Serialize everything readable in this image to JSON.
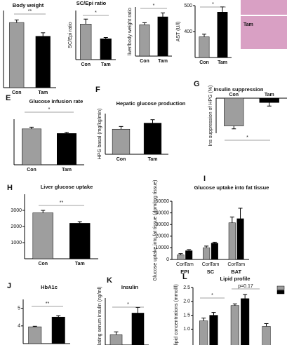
{
  "chart_data": [
    {
      "type": "bar",
      "title": "Body weight",
      "categories": [
        "Con",
        "Tam"
      ],
      "values": [
        88,
        80
      ],
      "errors": [
        1.5,
        2
      ],
      "colors": [
        "#9e9e9e",
        "#000000"
      ],
      "ylim": [
        50,
        95
      ],
      "annotations": [
        "**"
      ]
    },
    {
      "type": "bar",
      "title": "SC/Epi ratio",
      "ylabel": "SC/Epi ratio",
      "categories": [
        "Con",
        "Tam"
      ],
      "values": [
        1.45,
        0.85
      ],
      "errors": [
        0.2,
        0.05
      ],
      "colors": [
        "#9e9e9e",
        "#000000"
      ],
      "ylim": [
        0,
        2
      ],
      "annotations": [
        "*"
      ]
    },
    {
      "type": "bar",
      "ylabel": "liver/body weight ratio",
      "categories": [
        "Con",
        "Tam"
      ],
      "values": [
        4.6,
        5.0
      ],
      "errors": [
        0.1,
        0.2
      ],
      "colors": [
        "#9e9e9e",
        "#000000"
      ],
      "ylim": [
        3,
        5.5
      ],
      "annotations": [
        "*"
      ]
    },
    {
      "type": "bar",
      "ylabel": "AST (U/l)",
      "categories": [
        "Con",
        "Tam"
      ],
      "values": [
        380,
        475
      ],
      "errors": [
        10,
        20
      ],
      "colors": [
        "#9e9e9e",
        "#000000"
      ],
      "ylim": [
        300,
        500
      ],
      "yticks": [
        400,
        500
      ],
      "annotations": [
        "*"
      ]
    },
    {
      "type": "image",
      "label": "Tam"
    },
    {
      "type": "bar",
      "panel": "E",
      "title": "Glucose infusion rate",
      "categories": [
        "Con",
        "Tam"
      ],
      "values": [
        63,
        55
      ],
      "errors": [
        3,
        2
      ],
      "colors": [
        "#9e9e9e",
        "#000000"
      ],
      "ylim": [
        0,
        80
      ],
      "annotations": [
        "*"
      ]
    },
    {
      "type": "bar",
      "panel": "F",
      "title": "Hepatic glucose production",
      "ylabel": "HPG basal (mg/kg/min)",
      "categories": [
        "Con",
        "Tam"
      ],
      "values": [
        3.7,
        4.6
      ],
      "errors": [
        0.4,
        0.5
      ],
      "colors": [
        "#9e9e9e",
        "#000000"
      ],
      "ylim": [
        0,
        6
      ]
    },
    {
      "type": "bar",
      "panel": "G",
      "title": "Insulin suppression",
      "ylabel": "Ins suppression of HPG (%)",
      "categories": [
        "Con",
        "Tam"
      ],
      "values": [
        -95,
        -15
      ],
      "errors": [
        10,
        12
      ],
      "colors": [
        "#9e9e9e",
        "#000000"
      ],
      "ylim": [
        -120,
        0
      ],
      "annotations": [
        "*"
      ]
    },
    {
      "type": "bar",
      "panel": "H",
      "title": "Liver glucose uptake",
      "categories": [
        "Con",
        "Tam"
      ],
      "values": [
        2850,
        2200
      ],
      "errors": [
        150,
        100
      ],
      "colors": [
        "#9e9e9e",
        "#000000"
      ],
      "ylim": [
        0,
        4000
      ],
      "yticks": [
        1000,
        2000,
        3000
      ],
      "annotations": [
        "**"
      ]
    },
    {
      "type": "bar",
      "panel": "I",
      "title": "Glucose uptake into fat tissue",
      "ylabel": "Glucose uptake into fat tissue (dpm/mg tissue)",
      "categories": [
        "EPI",
        "SC",
        "BAT"
      ],
      "series": [
        {
          "name": "Con",
          "color": "#9e9e9e",
          "values": [
            4000,
            10000,
            31500
          ],
          "errors": [
            1000,
            1500,
            5000
          ]
        },
        {
          "name": "Tam",
          "color": "#000000",
          "values": [
            7500,
            14000,
            35000
          ],
          "errors": [
            1000,
            800,
            9000
          ]
        }
      ],
      "ylim": [
        0,
        50000
      ],
      "yticks": [
        0,
        10000,
        20000,
        30000,
        40000,
        50000
      ]
    },
    {
      "type": "bar",
      "panel": "J",
      "title": "HbA1c",
      "categories": [
        "Con",
        "Tam"
      ],
      "values": [
        3.95,
        4.5
      ],
      "errors": [
        0.03,
        0.08
      ],
      "colors": [
        "#9e9e9e",
        "#000000"
      ],
      "ylim": [
        3,
        5.5
      ],
      "yticks": [
        4,
        5
      ],
      "annotations": [
        "**"
      ]
    },
    {
      "type": "bar",
      "panel": "K",
      "title": "Insulin",
      "ylabel": "Circulating serum insulin (ng/ml)",
      "categories": [
        "Con",
        "Tam"
      ],
      "values": [
        1.1,
        3.4
      ],
      "errors": [
        0.3,
        0.6
      ],
      "colors": [
        "#9e9e9e",
        "#000000"
      ],
      "ylim": [
        0,
        5
      ],
      "annotations": [
        "*"
      ]
    },
    {
      "type": "bar",
      "panel": "L",
      "title": "Lipid profile",
      "ylabel": "serum lipid concentrations (mmol/l)",
      "categories": [
        null,
        null,
        null
      ],
      "series": [
        {
          "color": "#9e9e9e",
          "values": [
            1.3,
            1.85,
            1.1
          ],
          "errors": [
            0.1,
            0.06,
            0.1
          ]
        },
        {
          "color": "#000000",
          "values": [
            1.5,
            2.1,
            null
          ],
          "errors": [
            0.1,
            0.15,
            null
          ]
        }
      ],
      "ylim": [
        0,
        2.5
      ],
      "yticks": [
        {
          "value": 1.0,
          "label": "1.0"
        },
        {
          "value": 1.5,
          "label": "1.5"
        },
        {
          "value": 2.0,
          "label": "2.0"
        },
        {
          "value": 2.5,
          "label": "2.5"
        }
      ],
      "annotations": [
        "*",
        "p=0.17"
      ]
    }
  ]
}
